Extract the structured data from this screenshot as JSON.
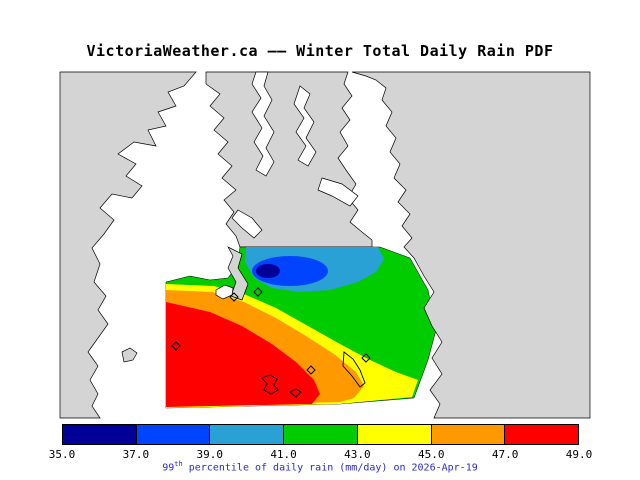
{
  "title": "VictoriaWeather.ca —— Winter Total Daily Rain PDF",
  "map": {
    "land_color": "#d4d4d4",
    "water_color": "#ffffff"
  },
  "colorbar": {
    "tick_labels": [
      "35.0",
      "37.0",
      "39.0",
      "41.0",
      "43.0",
      "45.0",
      "47.0",
      "49.0"
    ],
    "levels": [
      35.0,
      37.0,
      39.0,
      41.0,
      43.0,
      45.0,
      47.0,
      49.0
    ],
    "segment_colors": [
      "#000099",
      "#0044ff",
      "#2aa1d4",
      "#00cc00",
      "#ffff00",
      "#ff9900",
      "#ff0000"
    ]
  },
  "caption": {
    "value": "99",
    "superscript": "th",
    "rest": " percentile of daily rain (mm/day) on 2026-Apr-19",
    "color": "#2a2ac8"
  }
}
